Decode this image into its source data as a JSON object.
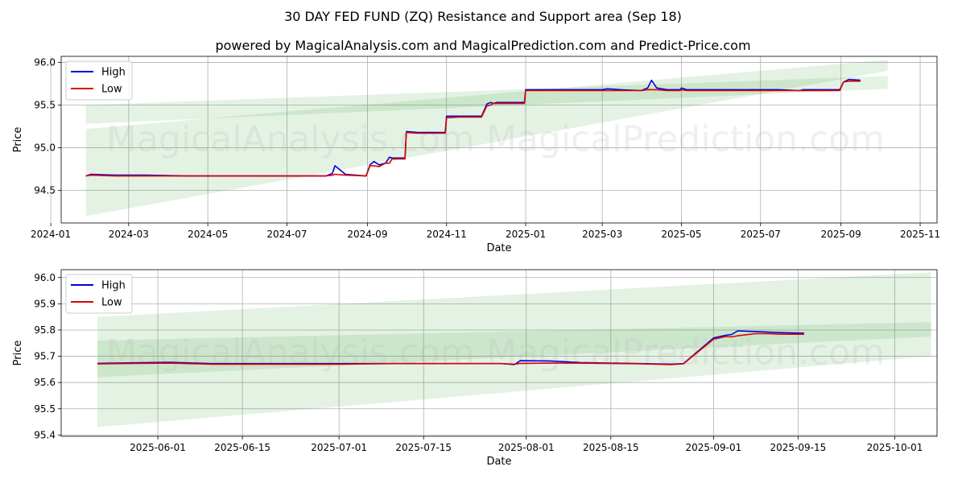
{
  "title": "30 DAY FED FUND (ZQ) Resistance and Support area (Sep 18)",
  "subtitle": "powered by MagicalAnalysis.com and MagicalPrediction.com and Predict-Price.com",
  "watermarks": [
    "MagicalAnalysis.com",
    "MagicalPrediction.com"
  ],
  "colors": {
    "high": "#0000dd",
    "low": "#dd0000",
    "band": "#2e9a2e",
    "grid": "#b0b0b0"
  },
  "chart_data": [
    {
      "type": "line",
      "xlabel": "Date",
      "ylabel": "Price",
      "grid": true,
      "legend_position": "top-left",
      "xlim": [
        "2024-01-09",
        "2025-11-14"
      ],
      "ylim": [
        94.12,
        96.07
      ],
      "x_ticks": [
        "2024-01",
        "2024-03",
        "2024-05",
        "2024-07",
        "2024-09",
        "2024-11",
        "2025-01",
        "2025-03",
        "2025-05",
        "2025-07",
        "2025-09",
        "2025-11"
      ],
      "x_tick_dates": [
        "2024-01-01",
        "2024-03-01",
        "2024-05-01",
        "2024-07-01",
        "2024-09-01",
        "2024-11-01",
        "2025-01-01",
        "2025-03-01",
        "2025-05-01",
        "2025-07-01",
        "2025-09-01",
        "2025-11-01"
      ],
      "y_ticks": [
        "94.5",
        "95.0",
        "95.5",
        "96.0"
      ],
      "y_tick_values": [
        94.5,
        95.0,
        95.5,
        96.0
      ],
      "bands": [
        {
          "x": [
            "2024-01-28",
            "2025-10-07"
          ],
          "lower": [
            94.2,
            95.9
          ],
          "upper": [
            95.22,
            96.03
          ]
        },
        {
          "x": [
            "2024-01-28",
            "2025-10-07"
          ],
          "lower": [
            95.28,
            95.69
          ],
          "upper": [
            95.5,
            95.84
          ]
        }
      ],
      "series": [
        {
          "name": "High",
          "x": [
            "2024-01-28",
            "2024-02-01",
            "2024-02-20",
            "2024-03-15",
            "2024-04-15",
            "2024-05-15",
            "2024-06-15",
            "2024-07-15",
            "2024-07-31",
            "2024-08-05",
            "2024-08-07",
            "2024-08-15",
            "2024-08-31",
            "2024-09-03",
            "2024-09-06",
            "2024-09-10",
            "2024-09-15",
            "2024-09-18",
            "2024-09-20",
            "2024-09-30",
            "2024-10-01",
            "2024-10-10",
            "2024-10-31",
            "2024-11-01",
            "2024-11-10",
            "2024-11-28",
            "2024-12-02",
            "2024-12-05",
            "2024-12-07",
            "2024-12-10",
            "2024-12-15",
            "2024-12-31",
            "2025-01-01",
            "2025-01-15",
            "2025-02-01",
            "2025-02-15",
            "2025-03-01",
            "2025-03-05",
            "2025-03-15",
            "2025-03-31",
            "2025-04-05",
            "2025-04-08",
            "2025-04-12",
            "2025-04-20",
            "2025-04-30",
            "2025-05-01",
            "2025-05-05",
            "2025-05-15",
            "2025-06-01",
            "2025-06-15",
            "2025-07-01",
            "2025-07-15",
            "2025-07-31",
            "2025-08-03",
            "2025-08-08",
            "2025-08-15",
            "2025-08-31",
            "2025-09-03",
            "2025-09-07",
            "2025-09-16"
          ],
          "values": [
            94.67,
            94.69,
            94.68,
            94.68,
            94.67,
            94.67,
            94.67,
            94.67,
            94.67,
            94.7,
            94.79,
            94.69,
            94.67,
            94.8,
            94.84,
            94.8,
            94.82,
            94.89,
            94.88,
            94.88,
            95.19,
            95.18,
            95.18,
            95.37,
            95.37,
            95.37,
            95.51,
            95.53,
            95.52,
            95.53,
            95.53,
            95.53,
            95.68,
            95.68,
            95.68,
            95.68,
            95.68,
            95.69,
            95.68,
            95.67,
            95.7,
            95.79,
            95.7,
            95.68,
            95.68,
            95.7,
            95.68,
            95.68,
            95.68,
            95.68,
            95.68,
            95.68,
            95.67,
            95.68,
            95.68,
            95.68,
            95.68,
            95.77,
            95.8,
            95.79
          ]
        },
        {
          "name": "Low",
          "x": [
            "2024-01-28",
            "2024-02-01",
            "2024-02-20",
            "2024-03-15",
            "2024-04-15",
            "2024-05-15",
            "2024-06-15",
            "2024-07-15",
            "2024-07-31",
            "2024-08-05",
            "2024-08-07",
            "2024-08-15",
            "2024-08-31",
            "2024-09-03",
            "2024-09-06",
            "2024-09-10",
            "2024-09-15",
            "2024-09-18",
            "2024-09-20",
            "2024-09-30",
            "2024-10-01",
            "2024-10-10",
            "2024-10-31",
            "2024-11-01",
            "2024-11-10",
            "2024-11-28",
            "2024-12-02",
            "2024-12-05",
            "2024-12-07",
            "2024-12-10",
            "2024-12-15",
            "2024-12-31",
            "2025-01-01",
            "2025-01-15",
            "2025-02-01",
            "2025-02-15",
            "2025-03-01",
            "2025-03-05",
            "2025-03-15",
            "2025-03-31",
            "2025-04-05",
            "2025-04-08",
            "2025-04-12",
            "2025-04-20",
            "2025-04-30",
            "2025-05-01",
            "2025-05-05",
            "2025-05-15",
            "2025-06-01",
            "2025-06-15",
            "2025-07-01",
            "2025-07-15",
            "2025-07-31",
            "2025-08-03",
            "2025-08-08",
            "2025-08-15",
            "2025-08-31",
            "2025-09-03",
            "2025-09-07",
            "2025-09-16"
          ],
          "values": [
            94.67,
            94.68,
            94.67,
            94.67,
            94.67,
            94.67,
            94.67,
            94.67,
            94.67,
            94.68,
            94.69,
            94.68,
            94.67,
            94.79,
            94.79,
            94.78,
            94.82,
            94.82,
            94.87,
            94.87,
            95.18,
            95.17,
            95.17,
            95.35,
            95.36,
            95.36,
            95.49,
            95.5,
            95.52,
            95.52,
            95.52,
            95.52,
            95.67,
            95.67,
            95.67,
            95.67,
            95.67,
            95.67,
            95.67,
            95.67,
            95.68,
            95.68,
            95.68,
            95.67,
            95.67,
            95.68,
            95.67,
            95.67,
            95.67,
            95.67,
            95.67,
            95.67,
            95.67,
            95.67,
            95.67,
            95.67,
            95.67,
            95.77,
            95.78,
            95.78
          ]
        }
      ]
    },
    {
      "type": "line",
      "xlabel": "Date",
      "ylabel": "Price",
      "grid": true,
      "legend_position": "top-left",
      "xlim": [
        "2025-05-16",
        "2025-10-08"
      ],
      "ylim": [
        95.395,
        96.03
      ],
      "x_ticks": [
        "2025-06-01",
        "2025-06-15",
        "2025-07-01",
        "2025-07-15",
        "2025-08-01",
        "2025-08-15",
        "2025-09-01",
        "2025-09-15",
        "2025-10-01"
      ],
      "x_tick_dates": [
        "2025-06-01",
        "2025-06-15",
        "2025-07-01",
        "2025-07-15",
        "2025-08-01",
        "2025-08-15",
        "2025-09-01",
        "2025-09-15",
        "2025-10-01"
      ],
      "y_ticks": [
        "95.4",
        "95.5",
        "95.6",
        "95.7",
        "95.8",
        "95.9",
        "96.0"
      ],
      "y_tick_values": [
        95.4,
        95.5,
        95.6,
        95.7,
        95.8,
        95.9,
        96.0
      ],
      "bands": [
        {
          "x": [
            "2025-05-22",
            "2025-10-07"
          ],
          "lower": [
            95.43,
            95.7
          ],
          "upper": [
            95.85,
            96.02
          ]
        },
        {
          "x": [
            "2025-05-22",
            "2025-10-07"
          ],
          "lower": [
            95.62,
            95.775
          ],
          "upper": [
            95.76,
            95.83
          ]
        }
      ],
      "series": [
        {
          "name": "High",
          "x": [
            "2025-05-22",
            "2025-05-28",
            "2025-06-03",
            "2025-06-10",
            "2025-06-20",
            "2025-07-01",
            "2025-07-10",
            "2025-07-20",
            "2025-07-28",
            "2025-07-30",
            "2025-07-31",
            "2025-08-05",
            "2025-08-10",
            "2025-08-20",
            "2025-08-25",
            "2025-08-27",
            "2025-09-01",
            "2025-09-03",
            "2025-09-04",
            "2025-09-05",
            "2025-09-08",
            "2025-09-10",
            "2025-09-12",
            "2025-09-16"
          ],
          "values": [
            95.673,
            95.675,
            95.677,
            95.672,
            95.672,
            95.672,
            95.672,
            95.672,
            95.672,
            95.668,
            95.683,
            95.682,
            95.676,
            95.672,
            95.67,
            95.672,
            95.77,
            95.78,
            95.783,
            95.797,
            95.794,
            95.792,
            95.79,
            95.788
          ]
        },
        {
          "name": "Low",
          "x": [
            "2025-05-22",
            "2025-05-28",
            "2025-06-03",
            "2025-06-10",
            "2025-06-20",
            "2025-07-01",
            "2025-07-10",
            "2025-07-20",
            "2025-07-28",
            "2025-07-30",
            "2025-07-31",
            "2025-08-05",
            "2025-08-10",
            "2025-08-20",
            "2025-08-25",
            "2025-08-27",
            "2025-09-01",
            "2025-09-03",
            "2025-09-04",
            "2025-09-05",
            "2025-09-08",
            "2025-09-10",
            "2025-09-12",
            "2025-09-16"
          ],
          "values": [
            95.671,
            95.673,
            95.674,
            95.67,
            95.67,
            95.67,
            95.672,
            95.672,
            95.672,
            95.67,
            95.673,
            95.674,
            95.674,
            95.671,
            95.668,
            95.671,
            95.765,
            95.775,
            95.774,
            95.778,
            95.786,
            95.786,
            95.784,
            95.784
          ]
        }
      ]
    }
  ]
}
